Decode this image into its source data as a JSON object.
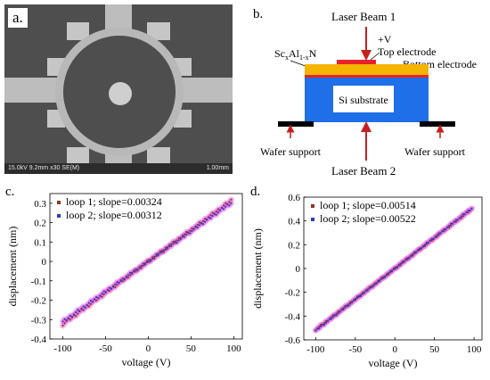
{
  "panel_a": {
    "letter": "a.",
    "sem_info_left": "15.0kV 9.2mm x30 SE(M)",
    "sem_info_right": "1.00mm"
  },
  "panel_b": {
    "letter": "b.",
    "laser_beam_1": "Laser Beam 1",
    "laser_beam_2": "Laser Beam 2",
    "voltage": "+V",
    "top_electrode": "Top electrode",
    "bottom_electrode": "Bottom electrode",
    "material_base": "Sc",
    "material_x": "x",
    "material_mid": "Al",
    "material_1x": "1-x",
    "material_end": "N",
    "substrate": "Si substrate",
    "wafer_support_left": "Wafer support",
    "wafer_support_right": "Wafer support",
    "colors": {
      "film": "#f5b400",
      "electrode": "#e8222a",
      "substrate": "#1e6fe8",
      "support": "#000000",
      "arrow": "#c81e1e"
    }
  },
  "chart_data": [
    {
      "type": "scatter",
      "panel": "c.",
      "xlabel": "voltage (V)",
      "ylabel": "displacement (nm)",
      "xlim": [
        -115,
        110
      ],
      "ylim": [
        -0.4,
        0.35
      ],
      "xticks": [
        -100,
        -50,
        0,
        50,
        100
      ],
      "yticks": [
        -0.4,
        -0.3,
        -0.2,
        -0.1,
        0,
        0.1,
        0.2,
        0.3
      ],
      "x_range": [
        -100,
        97
      ],
      "series": [
        {
          "name": "loop 1; slope=0.00324",
          "slope": 0.00324,
          "color": "#8b3a1a"
        },
        {
          "name": "loop 2; slope=0.00312",
          "slope": 0.00312,
          "color": "#2b3fb8"
        }
      ]
    },
    {
      "type": "scatter",
      "panel": "d.",
      "xlabel": "voltage (V)",
      "ylabel": "displacement (nm)",
      "xlim": [
        -115,
        110
      ],
      "ylim": [
        -0.6,
        0.6
      ],
      "xticks": [
        -100,
        -50,
        0,
        50,
        100
      ],
      "yticks": [
        -0.6,
        -0.4,
        -0.2,
        0,
        0.2,
        0.4,
        0.6
      ],
      "x_range": [
        -100,
        97
      ],
      "series": [
        {
          "name": "loop 1; slope=0.00514",
          "slope": 0.00514,
          "color": "#8b3a1a"
        },
        {
          "name": "loop 2; slope=0.00522",
          "slope": 0.00522,
          "color": "#2b3fb8"
        }
      ]
    }
  ],
  "scatter_halo_color": "#f06ce8"
}
